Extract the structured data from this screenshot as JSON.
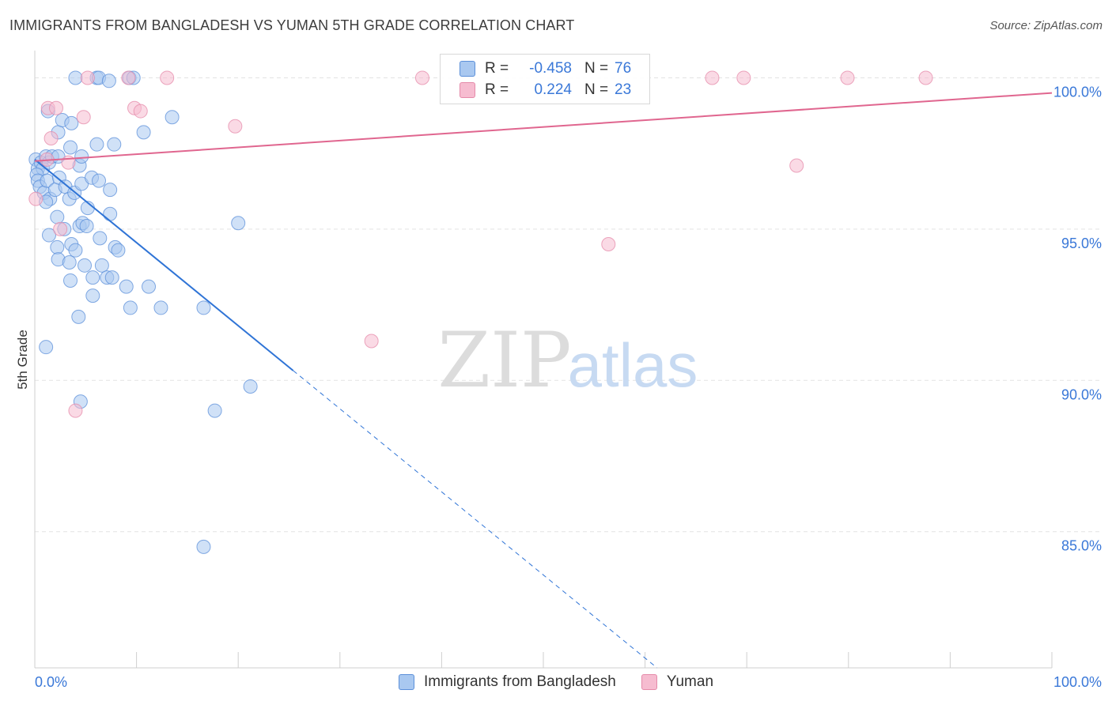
{
  "title": "IMMIGRANTS FROM BANGLADESH VS YUMAN 5TH GRADE CORRELATION CHART",
  "source": "Source: ZipAtlas.com",
  "watermark": {
    "zip": "ZIP",
    "atlas": "atlas"
  },
  "legend": {
    "rows": [
      {
        "r_label": "R =",
        "r_value": "-0.458",
        "n_label": "N =",
        "n_value": "76"
      },
      {
        "r_label": "R =",
        "r_value": "0.224",
        "n_label": "N =",
        "n_value": "23"
      }
    ]
  },
  "bottom_legend": [
    "Immigrants from Bangladesh",
    "Yuman"
  ],
  "colors": {
    "blue_fill": "#a9c8f0",
    "blue_stroke": "#5b8fd9",
    "blue_line": "#2f74d6",
    "pink_fill": "#f6bcd0",
    "pink_stroke": "#e58aa9",
    "pink_line": "#e0668f",
    "tick_label": "#3a78d8",
    "grid": "#e3e3e3"
  },
  "chart_data": {
    "type": "scatter",
    "title": "IMMIGRANTS FROM BANGLADESH VS YUMAN 5TH GRADE CORRELATION CHART",
    "xlabel": "",
    "ylabel": "5th Grade",
    "xlim": [
      0,
      100
    ],
    "ylim": [
      80.5,
      100.9
    ],
    "x_tick_labels": [
      "0.0%",
      "100.0%"
    ],
    "y_ticks": [
      85,
      90,
      95,
      100
    ],
    "y_tick_labels": [
      "85.0%",
      "90.0%",
      "95.0%",
      "100.0%"
    ],
    "grid": "horizontal dashed",
    "legend_position": "top-center",
    "series": [
      {
        "name": "Immigrants from Bangladesh",
        "r": -0.458,
        "n": 76,
        "trend": {
          "x0": 0,
          "y0": 97.3,
          "x_solid_end": 25.4,
          "slope": -0.2746
        },
        "points": [
          [
            4.0,
            100
          ],
          [
            6.1,
            100
          ],
          [
            6.3,
            100
          ],
          [
            7.3,
            99.9
          ],
          [
            9.3,
            100
          ],
          [
            9.7,
            100
          ],
          [
            1.3,
            98.9
          ],
          [
            2.3,
            98.2
          ],
          [
            2.7,
            98.6
          ],
          [
            3.6,
            98.5
          ],
          [
            6.1,
            97.8
          ],
          [
            7.8,
            97.8
          ],
          [
            10.7,
            98.2
          ],
          [
            0.1,
            97.3
          ],
          [
            0.3,
            97.0
          ],
          [
            0.6,
            97.2
          ],
          [
            0.8,
            97.0
          ],
          [
            1.1,
            97.4
          ],
          [
            1.4,
            97.2
          ],
          [
            1.7,
            97.4
          ],
          [
            2.3,
            97.4
          ],
          [
            3.5,
            97.7
          ],
          [
            4.4,
            97.1
          ],
          [
            4.6,
            97.4
          ],
          [
            0.2,
            96.8
          ],
          [
            0.3,
            96.6
          ],
          [
            0.5,
            96.4
          ],
          [
            0.9,
            96.2
          ],
          [
            1.2,
            96.6
          ],
          [
            1.5,
            96.0
          ],
          [
            2.0,
            96.3
          ],
          [
            2.4,
            96.7
          ],
          [
            3.0,
            96.4
          ],
          [
            3.4,
            96.0
          ],
          [
            3.9,
            96.2
          ],
          [
            4.6,
            96.5
          ],
          [
            5.2,
            95.7
          ],
          [
            5.6,
            96.7
          ],
          [
            6.3,
            96.6
          ],
          [
            7.4,
            96.3
          ],
          [
            1.1,
            95.9
          ],
          [
            2.2,
            95.4
          ],
          [
            2.9,
            95.0
          ],
          [
            3.6,
            94.5
          ],
          [
            4.4,
            95.1
          ],
          [
            4.7,
            95.2
          ],
          [
            5.1,
            95.1
          ],
          [
            6.4,
            94.7
          ],
          [
            7.4,
            95.5
          ],
          [
            7.9,
            94.4
          ],
          [
            8.2,
            94.3
          ],
          [
            1.4,
            94.8
          ],
          [
            2.2,
            94.4
          ],
          [
            2.3,
            94.0
          ],
          [
            3.4,
            93.9
          ],
          [
            4.0,
            94.3
          ],
          [
            4.9,
            93.8
          ],
          [
            6.6,
            93.8
          ],
          [
            7.1,
            93.4
          ],
          [
            7.6,
            93.4
          ],
          [
            3.5,
            93.3
          ],
          [
            5.7,
            93.4
          ],
          [
            9.0,
            93.1
          ],
          [
            11.2,
            93.1
          ],
          [
            5.7,
            92.8
          ],
          [
            9.4,
            92.4
          ],
          [
            12.4,
            92.4
          ],
          [
            16.6,
            92.4
          ],
          [
            1.1,
            91.1
          ],
          [
            4.3,
            92.1
          ],
          [
            20.0,
            95.2
          ],
          [
            4.5,
            89.3
          ],
          [
            17.7,
            89.0
          ],
          [
            21.2,
            89.8
          ],
          [
            16.6,
            84.5
          ],
          [
            13.5,
            98.7
          ]
        ]
      },
      {
        "name": "Yuman",
        "r": 0.224,
        "n": 23,
        "trend": {
          "x0": 0,
          "y0": 97.25,
          "x1": 100,
          "y1": 99.5
        },
        "points": [
          [
            0.1,
            96.0
          ],
          [
            1.3,
            99.0
          ],
          [
            2.1,
            99.0
          ],
          [
            1.6,
            98.0
          ],
          [
            1.2,
            97.3
          ],
          [
            3.3,
            97.2
          ],
          [
            2.5,
            95.0
          ],
          [
            4.8,
            98.7
          ],
          [
            5.2,
            100
          ],
          [
            9.2,
            100
          ],
          [
            13.0,
            100
          ],
          [
            9.8,
            99.0
          ],
          [
            10.4,
            98.9
          ],
          [
            19.7,
            98.4
          ],
          [
            38.1,
            100
          ],
          [
            66.6,
            100
          ],
          [
            69.7,
            100
          ],
          [
            79.9,
            100
          ],
          [
            87.6,
            100
          ],
          [
            56.4,
            94.5
          ],
          [
            74.9,
            97.1
          ],
          [
            33.1,
            91.3
          ],
          [
            4.0,
            89.0
          ]
        ]
      }
    ]
  }
}
